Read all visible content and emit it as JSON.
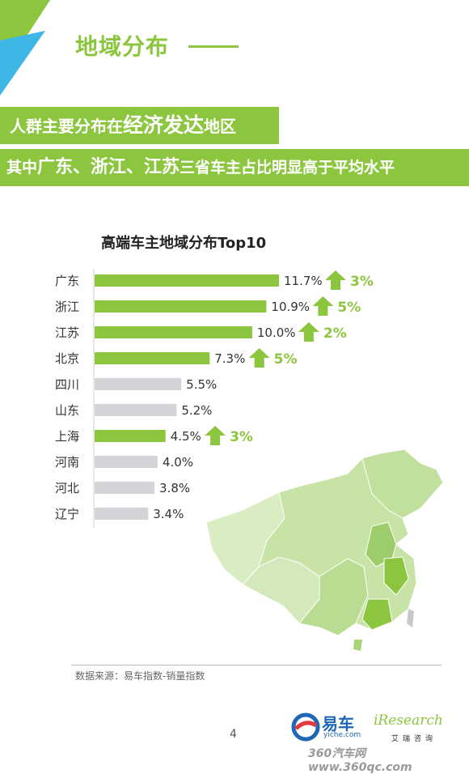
{
  "page": {
    "title": "地域分布",
    "banner1_pre": "人群主要分布在",
    "banner1_emph": "经济发达",
    "banner1_post": "地区",
    "banner2_pre": "其中",
    "banner2_emph": "广东、浙江、江苏",
    "banner2_post": "三省车主占比明显高于平均水平",
    "source": "数据来源：易车指数-销量指数",
    "page_number": "4",
    "logo_yiche_name": "易车",
    "logo_yiche_sub": "yiche.com",
    "logo_iresearch": "iResearch",
    "logo_iresearch_sub": "艾瑞咨询",
    "watermark": "360汽车网 www.360qc.com"
  },
  "colors": {
    "accent": "#8cc63f",
    "bar_gray": "#d4d4d8",
    "arrow": "#8cc63f"
  },
  "chart_data": {
    "type": "bar",
    "orientation": "horizontal",
    "title": "高端车主地域分布Top10",
    "categories": [
      "广东",
      "浙江",
      "江苏",
      "北京",
      "四川",
      "山东",
      "上海",
      "河南",
      "河北",
      "辽宁"
    ],
    "values": [
      11.7,
      10.9,
      10.0,
      7.3,
      5.5,
      5.2,
      4.5,
      4.0,
      3.8,
      3.4
    ],
    "value_labels": [
      "11.7%",
      "10.9%",
      "10.0%",
      "7.3%",
      "5.5%",
      "5.2%",
      "4.5%",
      "4.0%",
      "3.8%",
      "3.4%"
    ],
    "highlighted": [
      true,
      true,
      true,
      true,
      false,
      false,
      true,
      false,
      false,
      false
    ],
    "increase_labels": [
      "3%",
      "5%",
      "2%",
      "5%",
      "",
      "",
      "3%",
      "",
      "",
      ""
    ],
    "unit": "%",
    "xlim": [
      0,
      11.7
    ]
  }
}
